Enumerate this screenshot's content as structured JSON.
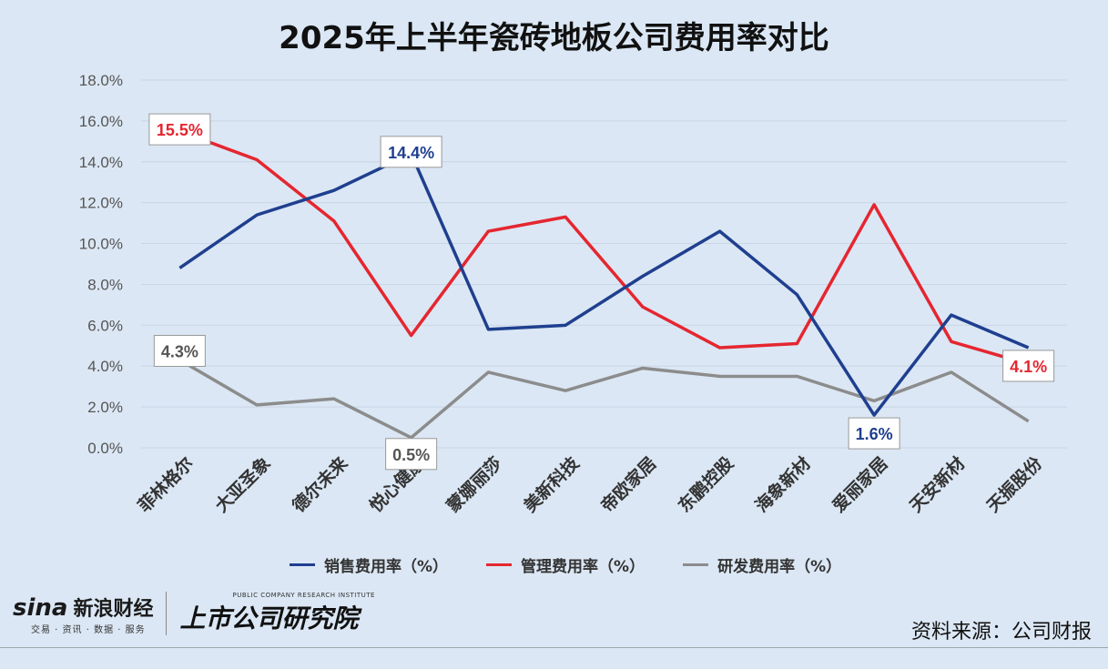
{
  "title": "2025年上半年瓷砖地板公司费用率对比",
  "source": "资料来源：公司财报",
  "logos": {
    "sina_word": "sina",
    "sina_cn": "新浪财经",
    "sina_sub": "交易 · 资讯 · 数据 · 服务",
    "gsy_en": "PUBLIC COMPANY RESEARCH INSTITUTE",
    "gsy_cn": "上市公司研究院"
  },
  "colors": {
    "sales": "#1f3f8f",
    "admin": "#e52630",
    "rd": "#8c8c8c",
    "background": "#dbe7f4"
  },
  "chart_data": {
    "type": "line",
    "title": "2025年上半年瓷砖地板公司费用率对比",
    "categories": [
      "菲林格尔",
      "大亚圣象",
      "德尔未来",
      "悦心健康",
      "蒙娜丽莎",
      "美新科技",
      "帝欧家居",
      "东鹏控股",
      "海象新材",
      "爱丽家居",
      "天安新材",
      "天振股份"
    ],
    "y_ticks": [
      "0.0%",
      "2.0%",
      "4.0%",
      "6.0%",
      "8.0%",
      "10.0%",
      "12.0%",
      "14.0%",
      "16.0%",
      "18.0%"
    ],
    "ylim": [
      0,
      18
    ],
    "grid": true,
    "legend_position": "bottom",
    "series": [
      {
        "name": "销售费用率（%）",
        "key": "sales",
        "values": [
          8.8,
          11.4,
          12.6,
          14.4,
          5.8,
          6.0,
          8.4,
          10.6,
          7.5,
          1.6,
          6.5,
          4.9
        ]
      },
      {
        "name": "管理费用率（%）",
        "key": "admin",
        "values": [
          15.5,
          14.1,
          11.1,
          5.5,
          10.6,
          11.3,
          6.9,
          4.9,
          5.1,
          11.9,
          5.2,
          4.1
        ]
      },
      {
        "name": "研发费用率（%）",
        "key": "rd",
        "values": [
          4.3,
          2.1,
          2.4,
          0.5,
          3.7,
          2.8,
          3.9,
          3.5,
          3.5,
          2.3,
          3.7,
          1.3
        ]
      }
    ],
    "data_labels": [
      {
        "series": "admin",
        "index": 0,
        "text": "15.5%"
      },
      {
        "series": "sales",
        "index": 3,
        "text": "14.4%"
      },
      {
        "series": "rd",
        "index": 0,
        "text": "4.3%"
      },
      {
        "series": "rd",
        "index": 3,
        "text": "0.5%"
      },
      {
        "series": "sales",
        "index": 9,
        "text": "1.6%"
      },
      {
        "series": "admin",
        "index": 11,
        "text": "4.1%"
      }
    ]
  }
}
